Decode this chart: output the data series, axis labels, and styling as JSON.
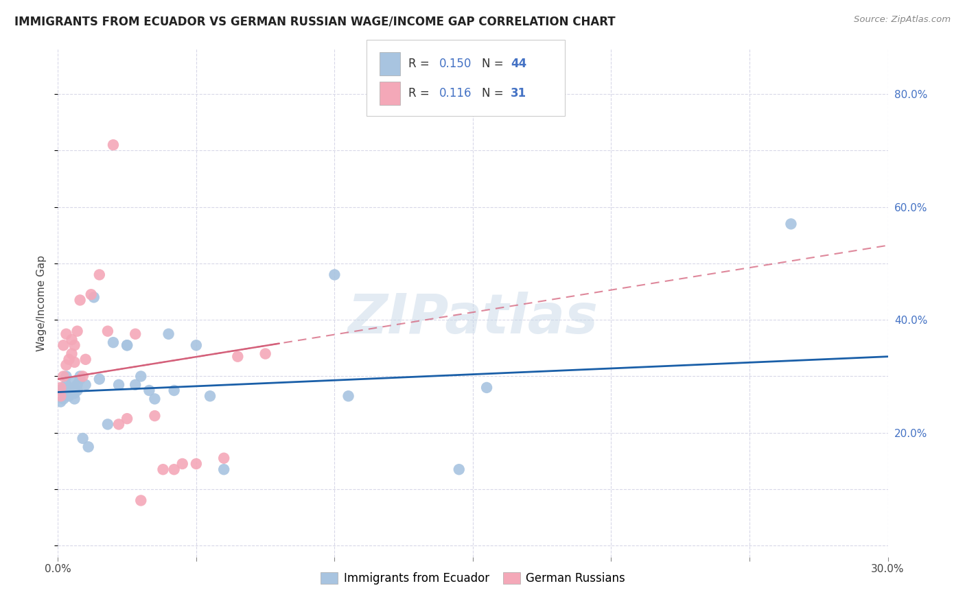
{
  "title": "IMMIGRANTS FROM ECUADOR VS GERMAN RUSSIAN WAGE/INCOME GAP CORRELATION CHART",
  "source": "Source: ZipAtlas.com",
  "ylabel": "Wage/Income Gap",
  "xlim": [
    0.0,
    0.3
  ],
  "ylim": [
    -0.02,
    0.88
  ],
  "right_yticks": [
    0.2,
    0.4,
    0.6,
    0.8
  ],
  "right_yticklabels": [
    "20.0%",
    "40.0%",
    "60.0%",
    "80.0%"
  ],
  "legend_labels": [
    "Immigrants from Ecuador",
    "German Russians"
  ],
  "ecuador_color": "#a8c4e0",
  "german_russian_color": "#f4a8b8",
  "ecuador_line_color": "#1a5fa8",
  "german_russian_line_color": "#d4607a",
  "R_ecuador": 0.15,
  "N_ecuador": 44,
  "R_german_russian": 0.116,
  "N_german_russian": 31,
  "ecuador_x": [
    0.001,
    0.001,
    0.002,
    0.002,
    0.003,
    0.003,
    0.003,
    0.004,
    0.004,
    0.004,
    0.005,
    0.005,
    0.005,
    0.006,
    0.006,
    0.006,
    0.007,
    0.007,
    0.008,
    0.008,
    0.009,
    0.01,
    0.011,
    0.013,
    0.015,
    0.018,
    0.02,
    0.022,
    0.025,
    0.025,
    0.028,
    0.03,
    0.033,
    0.035,
    0.04,
    0.042,
    0.05,
    0.055,
    0.06,
    0.1,
    0.105,
    0.145,
    0.155,
    0.265
  ],
  "ecuador_y": [
    0.255,
    0.275,
    0.26,
    0.28,
    0.285,
    0.27,
    0.3,
    0.265,
    0.275,
    0.28,
    0.27,
    0.275,
    0.29,
    0.27,
    0.28,
    0.26,
    0.285,
    0.275,
    0.3,
    0.295,
    0.19,
    0.285,
    0.175,
    0.44,
    0.295,
    0.215,
    0.36,
    0.285,
    0.355,
    0.355,
    0.285,
    0.3,
    0.275,
    0.26,
    0.375,
    0.275,
    0.355,
    0.265,
    0.135,
    0.48,
    0.265,
    0.135,
    0.28,
    0.57
  ],
  "german_russian_x": [
    0.001,
    0.001,
    0.002,
    0.002,
    0.003,
    0.003,
    0.004,
    0.005,
    0.005,
    0.006,
    0.006,
    0.007,
    0.008,
    0.009,
    0.01,
    0.012,
    0.015,
    0.018,
    0.02,
    0.022,
    0.025,
    0.028,
    0.03,
    0.035,
    0.038,
    0.042,
    0.045,
    0.05,
    0.06,
    0.065,
    0.075
  ],
  "german_russian_y": [
    0.265,
    0.28,
    0.3,
    0.355,
    0.32,
    0.375,
    0.33,
    0.34,
    0.365,
    0.325,
    0.355,
    0.38,
    0.435,
    0.3,
    0.33,
    0.445,
    0.48,
    0.38,
    0.71,
    0.215,
    0.225,
    0.375,
    0.08,
    0.23,
    0.135,
    0.135,
    0.145,
    0.145,
    0.155,
    0.335,
    0.34
  ],
  "watermark": "ZIPatlas",
  "background_color": "#ffffff",
  "grid_color": "#d8d8e8"
}
